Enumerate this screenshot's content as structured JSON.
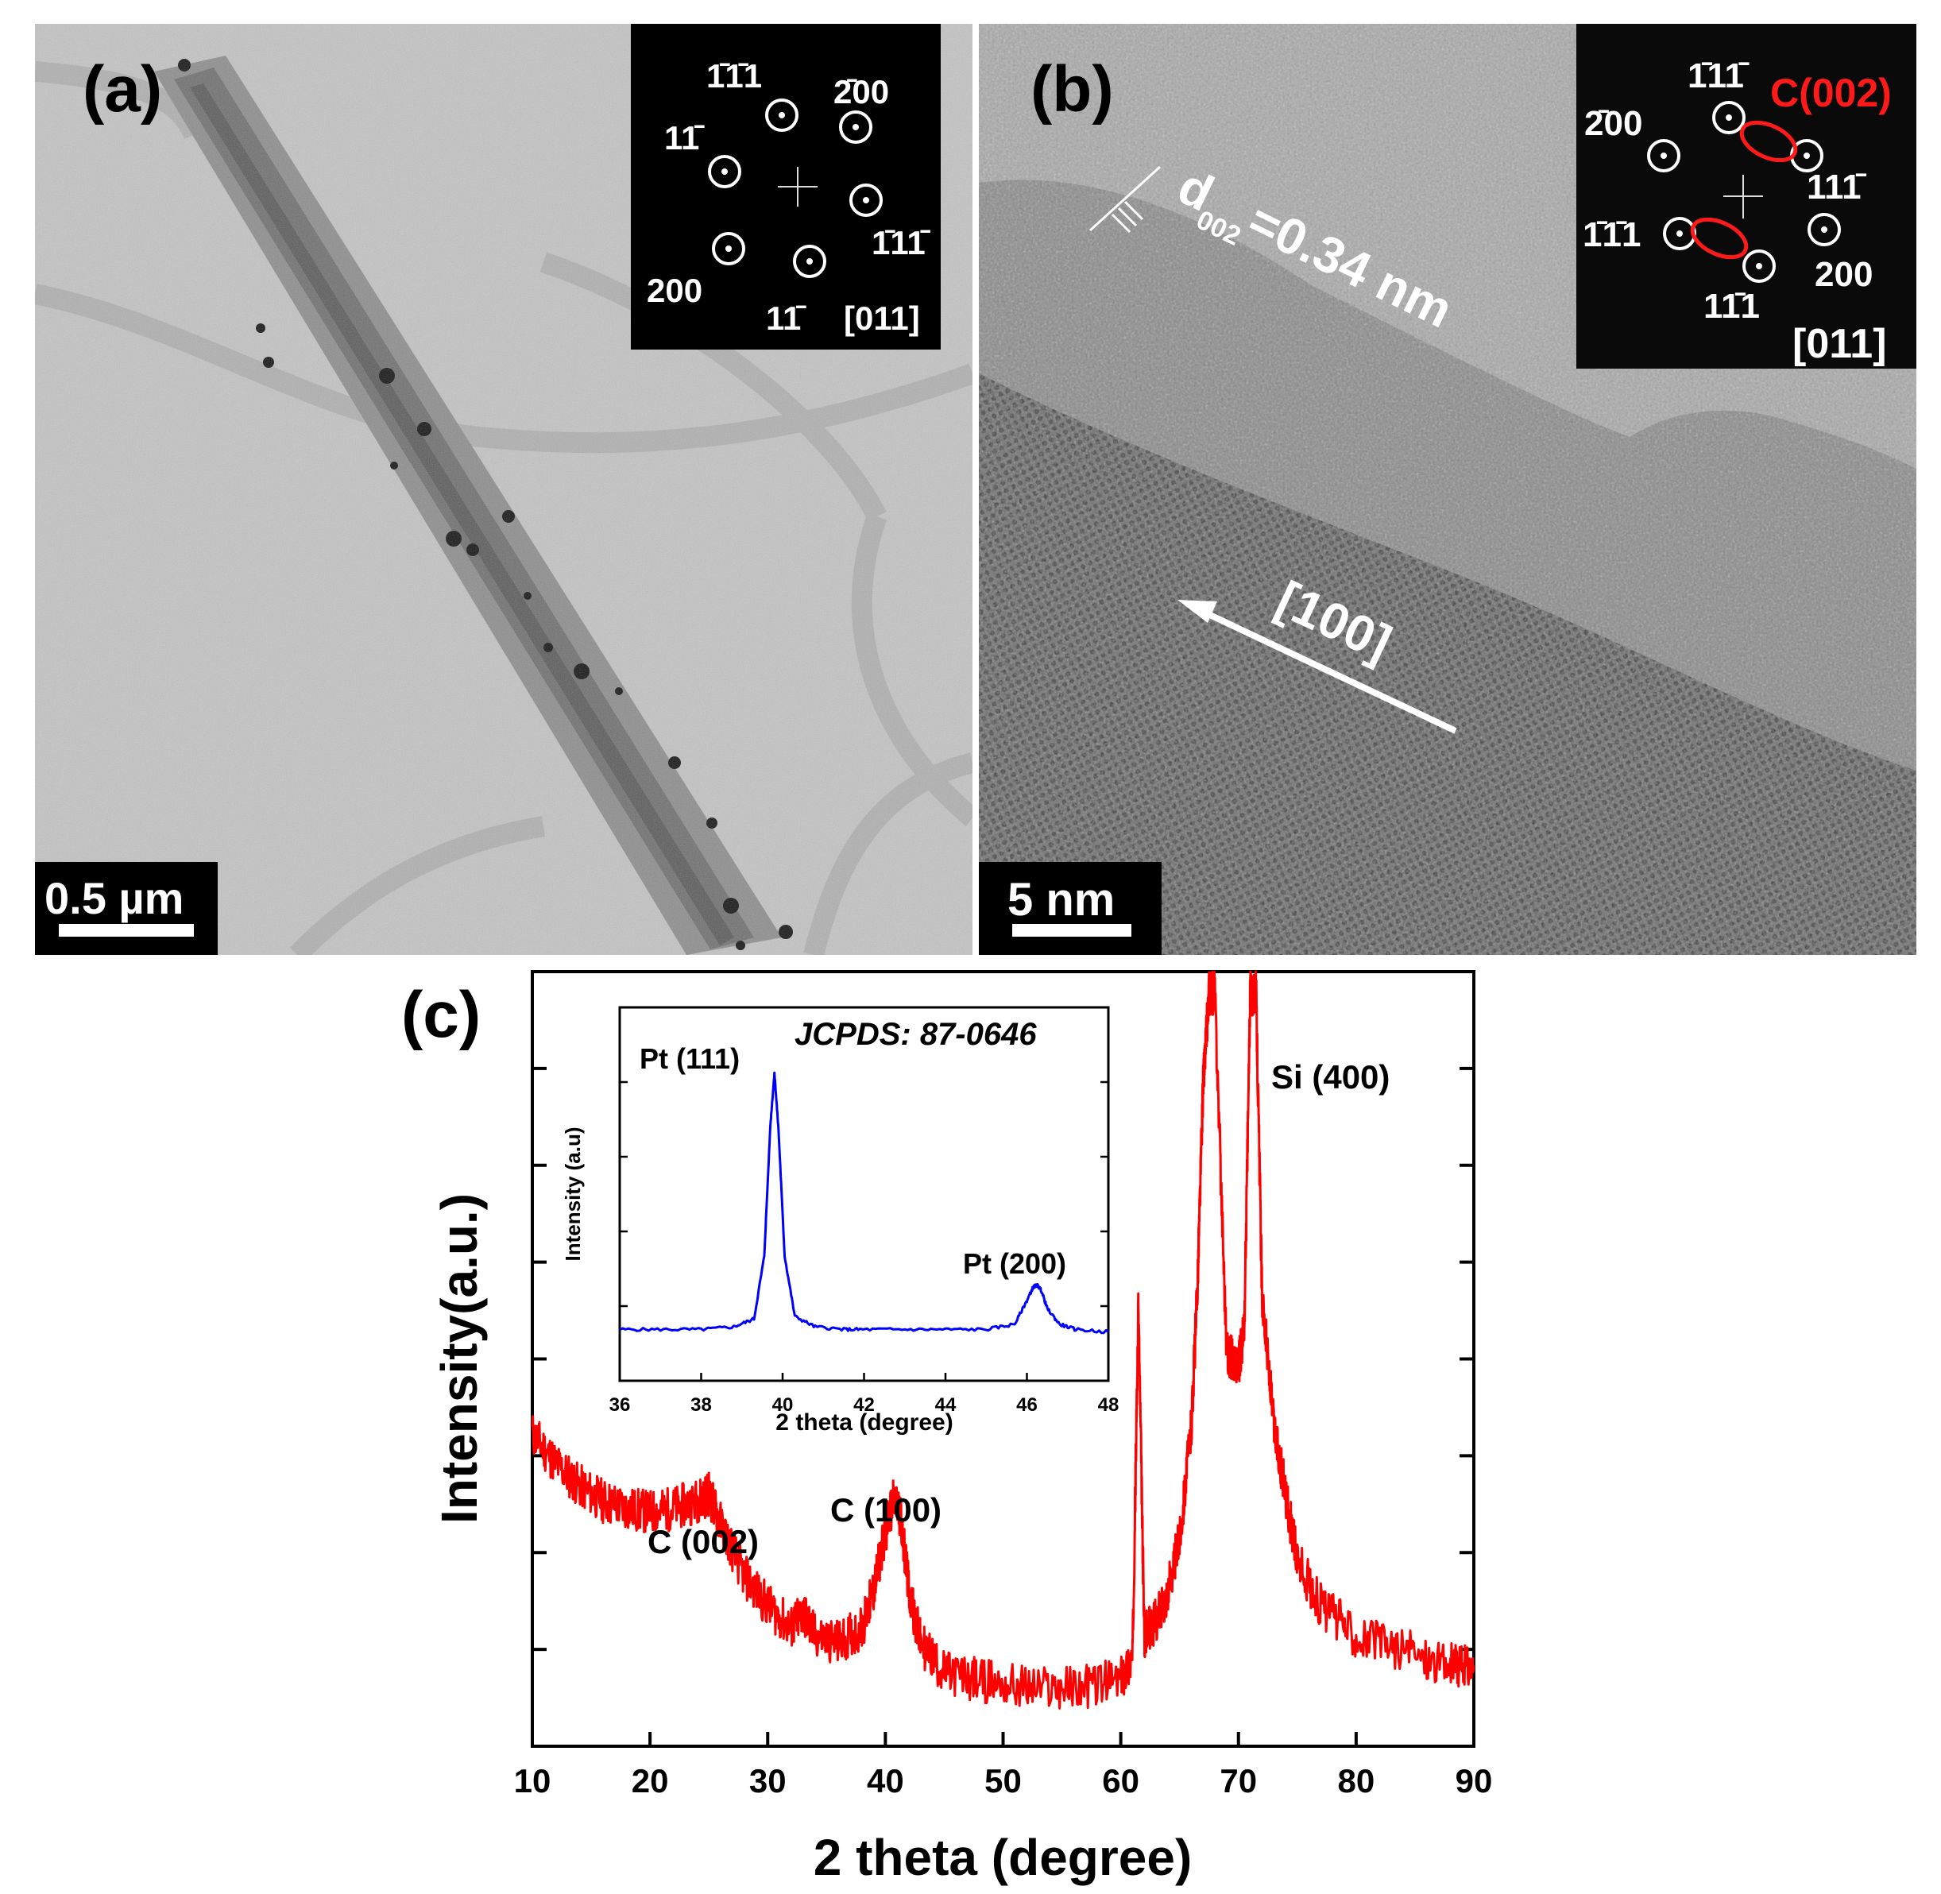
{
  "panel_a": {
    "label": "(a)",
    "scale_bar": "0.5 µm",
    "inset": {
      "spots": [
        "1̄1̄1",
        "2̄00",
        "11̄",
        "1̄11̄",
        "200",
        "11̄",
        "[011]"
      ]
    }
  },
  "panel_b": {
    "label": "(b)",
    "scale_bar": "5 nm",
    "spacing_label": "=0.34 nm",
    "spacing_symbol": "d",
    "spacing_sub": "002",
    "direction_label": "[100]",
    "inset": {
      "spots": [
        "1̄11̄",
        "C(002)",
        "2̄00",
        "111̄",
        "1̄1̄1",
        "200",
        "11̄1",
        "[011]"
      ]
    }
  },
  "panel_c": {
    "label": "(c)"
  },
  "colors": {
    "main_xrd": "#ff0000",
    "inset_xrd": "#0000ff",
    "fft_circle": "#ffffff",
    "fft_highlight": "#ff1a1a"
  },
  "chart_data": [
    {
      "type": "line",
      "title": "",
      "xlabel": "2 theta (degree)",
      "ylabel": "Intensity(a.u.)",
      "xlim": [
        10,
        90
      ],
      "x_ticks": [
        10,
        20,
        30,
        40,
        50,
        60,
        70,
        80,
        90
      ],
      "y_tick_labels_shown": false,
      "series": [
        {
          "x": [
            10,
            12,
            14,
            16,
            18,
            20,
            22,
            24,
            25,
            26,
            28,
            30,
            32,
            33,
            34,
            36,
            38,
            39,
            40,
            40.7,
            41.3,
            42,
            43,
            45,
            48,
            52,
            56,
            60,
            61,
            61.5,
            62,
            63,
            64,
            65,
            66,
            66.5,
            67,
            67.5,
            68,
            69,
            70,
            70.5,
            71,
            71.5,
            72,
            73,
            74,
            75,
            77,
            80,
            84,
            88,
            90
          ],
          "y": [
            0.41,
            0.37,
            0.34,
            0.32,
            0.31,
            0.305,
            0.31,
            0.32,
            0.33,
            0.29,
            0.22,
            0.18,
            0.15,
            0.17,
            0.14,
            0.13,
            0.15,
            0.2,
            0.28,
            0.32,
            0.3,
            0.2,
            0.13,
            0.09,
            0.08,
            0.07,
            0.07,
            0.08,
            0.11,
            0.58,
            0.14,
            0.16,
            0.2,
            0.27,
            0.42,
            0.6,
            0.88,
            1.0,
            1.0,
            0.52,
            0.5,
            0.55,
            1.0,
            1.0,
            0.6,
            0.42,
            0.33,
            0.24,
            0.18,
            0.14,
            0.12,
            0.1,
            0.1
          ]
        }
      ],
      "annotations": [
        "C (002)",
        "C (100)",
        "Si (400)"
      ]
    },
    {
      "type": "line",
      "title": "",
      "xlabel": "2 theta (degree)",
      "ylabel": "Intensity (a.u)",
      "xlim": [
        36,
        48
      ],
      "x_ticks": [
        36,
        38,
        40,
        42,
        44,
        46,
        48
      ],
      "y_tick_labels_shown": false,
      "series": [
        {
          "x": [
            36,
            37,
            38,
            38.8,
            39.3,
            39.55,
            39.7,
            39.8,
            39.9,
            40.05,
            40.3,
            40.8,
            41.5,
            42,
            43,
            44,
            45,
            45.7,
            46,
            46.15,
            46.25,
            46.35,
            46.5,
            46.8,
            47.2,
            48
          ],
          "y": [
            0.02,
            0.02,
            0.02,
            0.03,
            0.06,
            0.3,
            0.8,
            1.0,
            0.78,
            0.3,
            0.07,
            0.03,
            0.02,
            0.02,
            0.02,
            0.02,
            0.02,
            0.04,
            0.13,
            0.18,
            0.19,
            0.17,
            0.1,
            0.04,
            0.02,
            0.01
          ]
        }
      ],
      "annotations": [
        "Pt (111)",
        "Pt (200)",
        "JCPDS: 87-0646"
      ]
    }
  ]
}
